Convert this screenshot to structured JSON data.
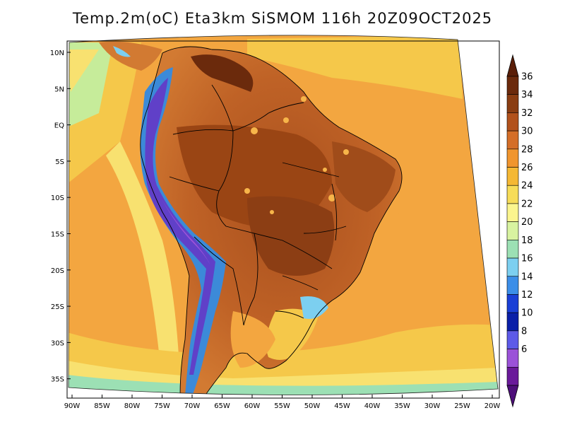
{
  "title": "Temp.2m(oC) Eta3km SiSMOM 116h 20Z09OCT2025",
  "lat_labels": [
    "10N",
    "5N",
    "EQ",
    "5S",
    "10S",
    "15S",
    "20S",
    "25S",
    "30S",
    "35S"
  ],
  "lon_labels": [
    "90W",
    "85W",
    "80W",
    "75W",
    "70W",
    "65W",
    "60W",
    "55W",
    "50W",
    "45W",
    "40W",
    "35W",
    "30W",
    "25W",
    "20W"
  ],
  "colorbar": {
    "labels": [
      "36",
      "34",
      "32",
      "30",
      "28",
      "26",
      "24",
      "22",
      "20",
      "18",
      "16",
      "14",
      "12",
      "10",
      "8",
      "6"
    ],
    "colors": [
      "#6b2a0c",
      "#8a3d12",
      "#b2521c",
      "#d46e28",
      "#f0952e",
      "#f5b834",
      "#f7dc58",
      "#fbf58e",
      "#d8f3a0",
      "#9ce0b4",
      "#7ccff0",
      "#3b8ee8",
      "#1a3fd6",
      "#0a1fa8",
      "#5d5ae8",
      "#9b52d8",
      "#6a1a9a"
    ],
    "top_arrow_color": "#5a1e08",
    "bottom_arrow_color": "#4e0f7a"
  },
  "field_colors": {
    "ocean_warm": "#f3a640",
    "ocean_mild": "#f5c84a",
    "ocean_cool": "#f8e170",
    "ocean_cold": "#c6ec9a",
    "land_hot": "#b65a24",
    "land_very_hot": "#8c3e14",
    "land_warm": "#d27a32",
    "andes_cold": "#6040c8",
    "andes_cool": "#3c8ad8",
    "hotspot": "#f7b54a"
  }
}
